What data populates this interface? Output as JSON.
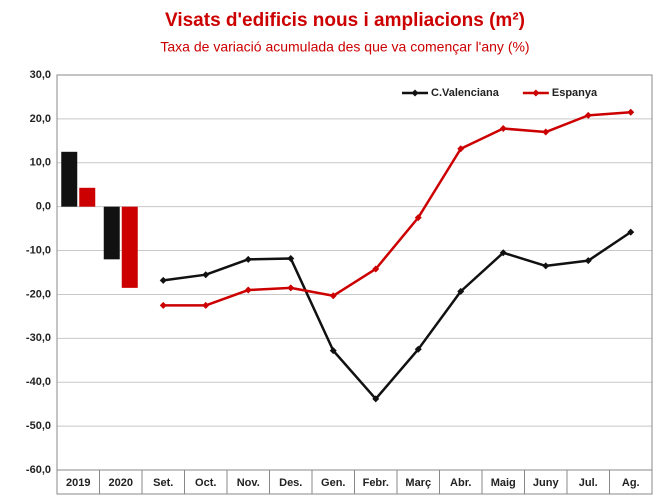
{
  "chart_data": {
    "type": "combo",
    "title": "Visats d'edificis nous i ampliacions (m²)",
    "subtitle": "Taxa de variació acumulada des que va començar l'any (%)",
    "categories": [
      "2019",
      "2020",
      "Set.",
      "Oct.",
      "Nov.",
      "Des.",
      "Gen.",
      "Febr.",
      "Març",
      "Abr.",
      "Maig",
      "Juny",
      "Jul.",
      "Ag."
    ],
    "series": [
      {
        "name": "C.Valenciana",
        "color": "#111111",
        "values": [
          null,
          null,
          -16.8,
          -15.5,
          -12.0,
          -11.8,
          -32.8,
          -43.8,
          -32.5,
          -19.3,
          -10.5,
          -13.5,
          -12.3,
          -5.8
        ],
        "bar_values": [
          12.5,
          -12.0,
          null,
          null,
          null,
          null,
          null,
          null,
          null,
          null,
          null,
          null,
          null,
          null
        ]
      },
      {
        "name": "Espanya",
        "color": "#cc0000",
        "values": [
          null,
          null,
          -22.5,
          -22.5,
          -19.0,
          -18.5,
          -20.3,
          -14.2,
          -2.5,
          13.2,
          17.8,
          17.0,
          20.8,
          21.5
        ],
        "bar_values": [
          4.3,
          -18.5,
          null,
          null,
          null,
          null,
          null,
          null,
          null,
          null,
          null,
          null,
          null,
          null
        ]
      }
    ],
    "ylim": [
      -60,
      30
    ],
    "yticks": [
      {
        "value": -60,
        "label": "-60,0"
      },
      {
        "value": -50,
        "label": "-50,0"
      },
      {
        "value": -40,
        "label": "-40,0"
      },
      {
        "value": -30,
        "label": "-30,0"
      },
      {
        "value": -20,
        "label": "-20,0"
      },
      {
        "value": -10,
        "label": "-10,0"
      },
      {
        "value": 0,
        "label": "0,0"
      },
      {
        "value": 10,
        "label": "10,0"
      },
      {
        "value": 20,
        "label": "20,0"
      },
      {
        "value": 30,
        "label": "30,0"
      }
    ],
    "grid": true,
    "legend": "top-right"
  }
}
